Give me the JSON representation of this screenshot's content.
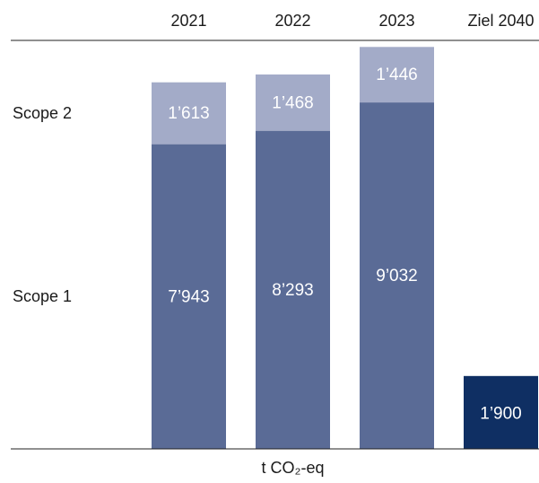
{
  "chart_data": {
    "type": "stacked-bar",
    "categories": [
      "2021",
      "2022",
      "2023",
      "Ziel 2040"
    ],
    "series": [
      {
        "name": "Scope 1",
        "color": "#5a6b96",
        "values": [
          7943,
          8293,
          9032,
          null
        ],
        "value_labels": [
          "7’943",
          "8’293",
          "9’032",
          null
        ]
      },
      {
        "name": "Scope 2",
        "color": "#a3abc8",
        "values": [
          1613,
          1468,
          1446,
          null
        ],
        "value_labels": [
          "1’613",
          "1’468",
          "1’446",
          null
        ]
      }
    ],
    "target": {
      "index": 3,
      "value": 1900,
      "value_label": "1’900",
      "color": "#0f2f63"
    },
    "x_label": "t CO₂-eq",
    "ylim": [
      0,
      11000
    ]
  }
}
